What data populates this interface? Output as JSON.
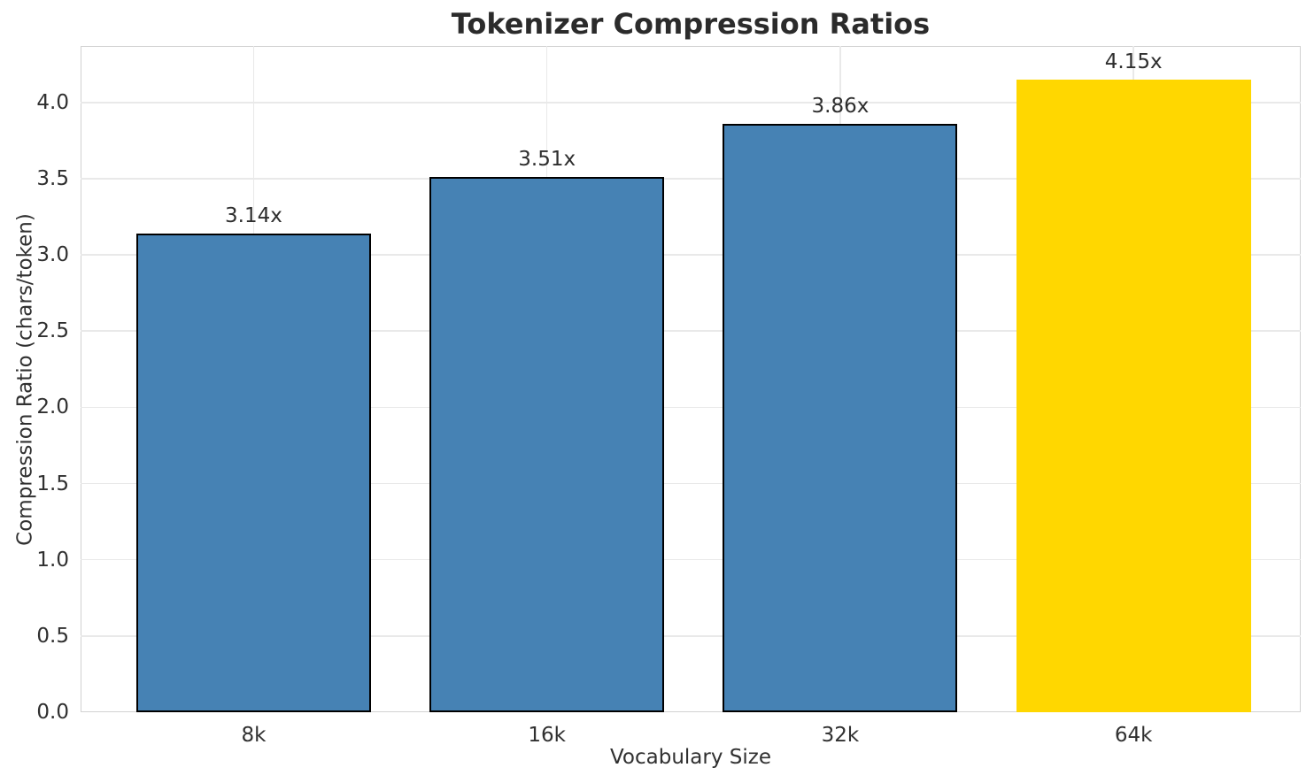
{
  "chart_data": {
    "type": "bar",
    "title": "Tokenizer Compression Ratios",
    "xlabel": "Vocabulary Size",
    "ylabel": "Compression Ratio (chars/token)",
    "categories": [
      "8k",
      "16k",
      "32k",
      "64k"
    ],
    "values": [
      3.14,
      3.51,
      3.86,
      4.15
    ],
    "bar_labels": [
      "3.14x",
      "3.51x",
      "3.86x",
      "4.15x"
    ],
    "ytick_labels": [
      "0.0",
      "0.5",
      "1.0",
      "1.5",
      "2.0",
      "2.5",
      "3.0",
      "3.5",
      "4.0"
    ],
    "ylim": [
      0,
      4.37
    ],
    "grid": true,
    "legend": false,
    "highlight_index": 3,
    "bar_colors": [
      "#4682B4",
      "#4682B4",
      "#4682B4",
      "#FFD700"
    ],
    "bar_edge_colors": [
      "#000000",
      "#000000",
      "#000000",
      "none"
    ],
    "colors": {
      "blue_bar": "#4682B4",
      "highlight_bar": "#FFD700",
      "bar_edge": "#000000",
      "grid": "#e9e9e9",
      "spine": "#d2d2d2",
      "text": "#2b2b2b"
    }
  }
}
